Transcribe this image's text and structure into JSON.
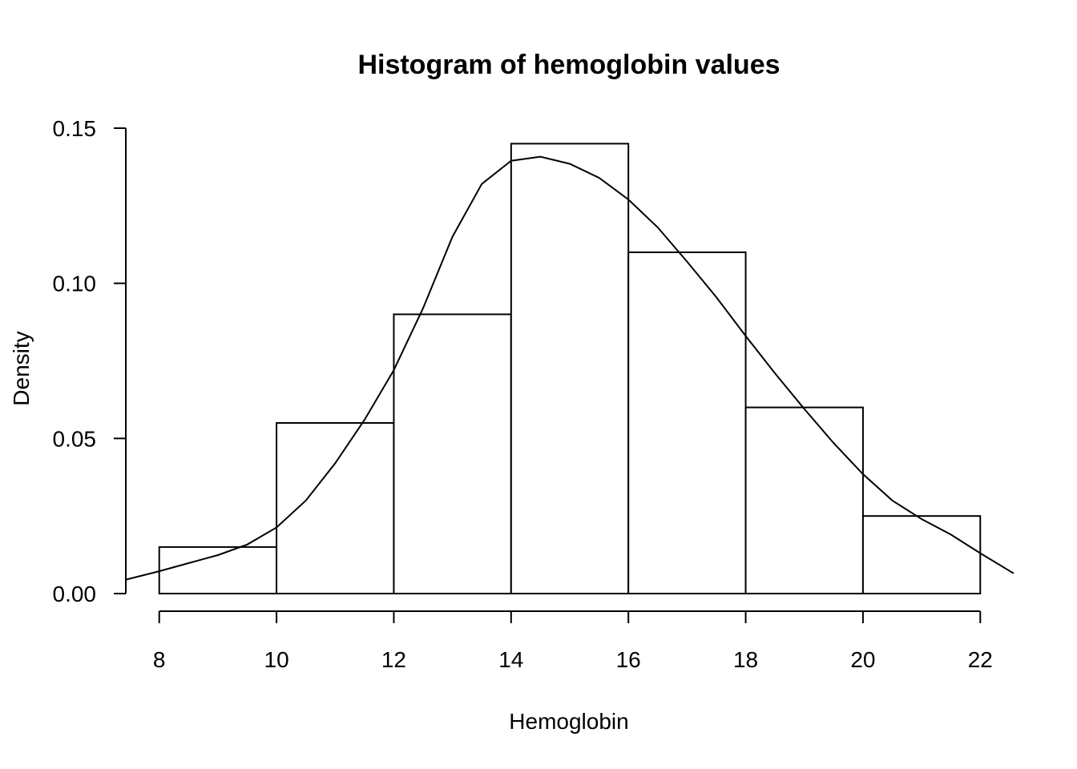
{
  "chart_data": {
    "type": "bar",
    "title": "Histogram of hemoglobin values",
    "xlabel": "Hemoglobin",
    "ylabel": "Density",
    "bins": [
      {
        "from": 8,
        "to": 10,
        "density": 0.015
      },
      {
        "from": 10,
        "to": 12,
        "density": 0.055
      },
      {
        "from": 12,
        "to": 14,
        "density": 0.09
      },
      {
        "from": 14,
        "to": 16,
        "density": 0.145
      },
      {
        "from": 16,
        "to": 18,
        "density": 0.11
      },
      {
        "from": 18,
        "to": 20,
        "density": 0.06
      },
      {
        "from": 20,
        "to": 22,
        "density": 0.025
      }
    ],
    "x_ticks": [
      8,
      10,
      12,
      14,
      16,
      18,
      20,
      22
    ],
    "y_ticks": [
      "0.00",
      "0.05",
      "0.10",
      "0.15"
    ],
    "xlim": [
      7.43,
      22.57
    ],
    "ylim": [
      0,
      0.15
    ],
    "density_curve": {
      "x": [
        7.43,
        8,
        8.5,
        9,
        9.5,
        10,
        10.5,
        11,
        11.5,
        12,
        12.5,
        13,
        13.5,
        14,
        14.5,
        15,
        15.5,
        16,
        16.5,
        17,
        17.5,
        18,
        18.5,
        19,
        19.5,
        20,
        20.5,
        21,
        21.5,
        22,
        22.57
      ],
      "y": [
        0.0045,
        0.0072,
        0.0098,
        0.0124,
        0.0158,
        0.0213,
        0.03,
        0.042,
        0.056,
        0.072,
        0.092,
        0.115,
        0.132,
        0.1395,
        0.1408,
        0.1385,
        0.134,
        0.127,
        0.118,
        0.107,
        0.0955,
        0.083,
        0.071,
        0.0595,
        0.0485,
        0.0385,
        0.03,
        0.024,
        0.019,
        0.013,
        0.0065
      ]
    },
    "grid": false,
    "legend": "none"
  }
}
